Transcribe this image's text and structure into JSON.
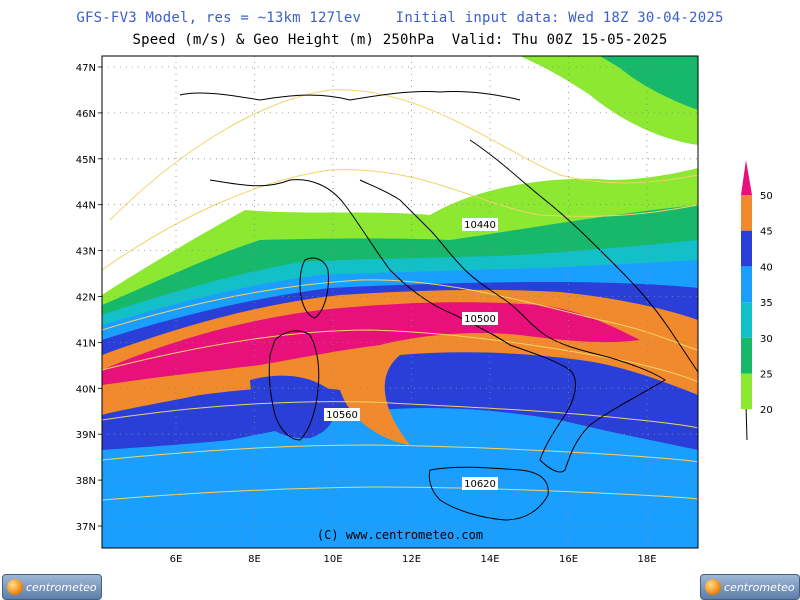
{
  "header": {
    "title_line1": "GFS-FV3 Model, res = ~13km 127lev    Initial input data: Wed 18Z 30-04-2025",
    "title_line2": "Speed (m/s) & Geo Height (m) 250hPa  Valid: Thu 00Z 15-05-2025"
  },
  "map": {
    "lat_labels": [
      "47N",
      "46N",
      "45N",
      "44N",
      "43N",
      "42N",
      "41N",
      "40N",
      "39N",
      "38N",
      "37N"
    ],
    "lon_labels": [
      "6E",
      "8E",
      "10E",
      "12E",
      "14E",
      "16E",
      "18E"
    ],
    "contour_labels": [
      "10440",
      "10500",
      "10560",
      "10620"
    ],
    "watermark": "(C) www.centrometeo.com"
  },
  "legend": {
    "ticks": [
      "50",
      "45",
      "40",
      "35",
      "30",
      "25",
      "20"
    ],
    "colors": [
      "#e8107a",
      "#f08a2c",
      "#2a3fd8",
      "#1a9fff",
      "#14c0c8",
      "#18b86a",
      "#8ce830"
    ]
  },
  "wind_colors": {
    "above_50": "#e8107a",
    "45_50": "#f08a2c",
    "40_45": "#2a3fd8",
    "35_40": "#1a9fff",
    "30_35": "#14c0c8",
    "25_30": "#18b86a",
    "20_25": "#8ce830"
  },
  "logos": {
    "left_text": "centrometeo",
    "right_text": "centrometeo",
    "icon": "globe-logo-icon"
  }
}
